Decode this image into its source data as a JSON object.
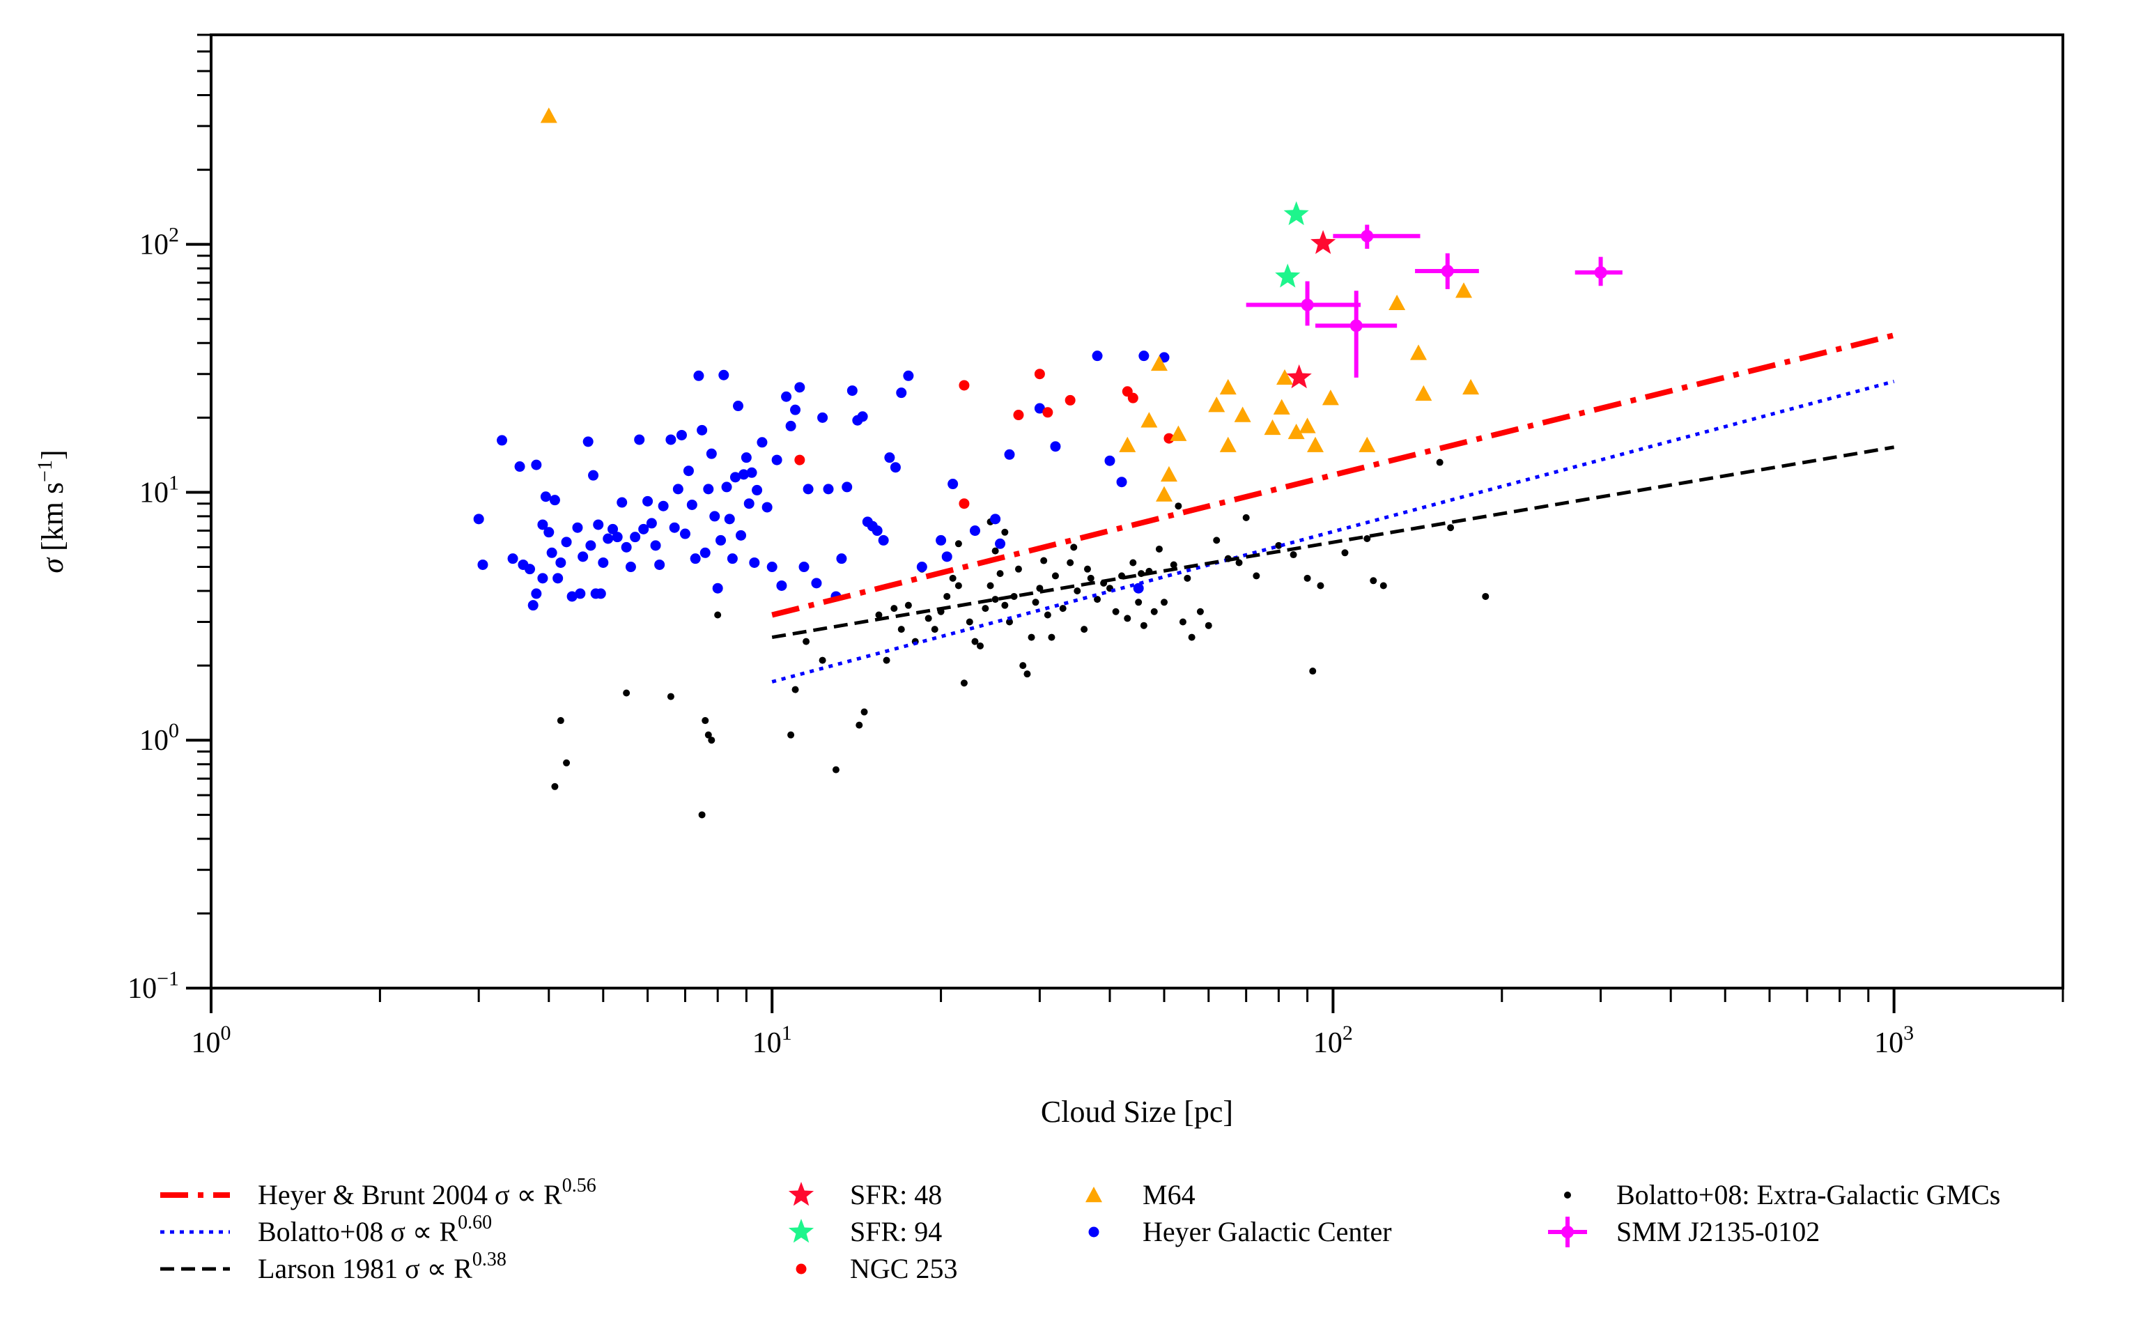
{
  "chart_data": {
    "type": "scatter",
    "xlabel": "Cloud Size [pc]",
    "ylabel_symbol": "σ",
    "ylabel_units": "[km s",
    "ylabel_exp": "−1",
    "ylabel_close": "]",
    "x_scale": "log",
    "y_scale": "log",
    "xlim": [
      1,
      2000
    ],
    "ylim": [
      0.1,
      700
    ],
    "grid": false,
    "legend_placement": "below-plot",
    "x_ticks": [
      {
        "value": 1,
        "base": "10",
        "exp": "0"
      },
      {
        "value": 10,
        "base": "10",
        "exp": "1"
      },
      {
        "value": 100,
        "base": "10",
        "exp": "2"
      },
      {
        "value": 1000,
        "base": "10",
        "exp": "3"
      }
    ],
    "y_ticks": [
      {
        "value": 0.1,
        "base": "10",
        "exp": "−1"
      },
      {
        "value": 1,
        "base": "10",
        "exp": "0"
      },
      {
        "value": 10,
        "base": "10",
        "exp": "1"
      },
      {
        "value": 100,
        "base": "10",
        "exp": "2"
      }
    ],
    "lines": [
      {
        "key": "heyer",
        "label_text": "Heyer & Brunt 2004 σ ∝ R",
        "label_exp": "0.56",
        "color": "#ff0000",
        "style": "dashdot",
        "exponent": 0.56,
        "x": [
          10,
          1000
        ],
        "y": [
          3.2,
          43
        ]
      },
      {
        "key": "bolatto",
        "label_text": "Bolatto+08 σ ∝ R",
        "label_exp": "0.60",
        "color": "#0000ff",
        "style": "dotted",
        "exponent": 0.6,
        "x": [
          10,
          1000
        ],
        "y": [
          1.72,
          28
        ]
      },
      {
        "key": "larson",
        "label_text": "Larson 1981 σ ∝ R",
        "label_exp": "0.38",
        "color": "#000000",
        "style": "dashed",
        "exponent": 0.38,
        "x": [
          10,
          1000
        ],
        "y": [
          2.6,
          15.2
        ]
      }
    ],
    "series": [
      {
        "key": "sfr48",
        "name": "SFR: 48",
        "marker": "star",
        "color": "#ff0a30",
        "points": [
          [
            96,
            101
          ],
          [
            87,
            29
          ]
        ]
      },
      {
        "key": "sfr94",
        "name": "SFR: 94",
        "marker": "star",
        "color": "#1ef58c",
        "points": [
          [
            86,
            132
          ],
          [
            83,
            74
          ]
        ]
      },
      {
        "key": "ngc253",
        "name": "NGC 253",
        "marker": "dot",
        "color": "#ff0000",
        "points": [
          [
            11.2,
            13.5
          ],
          [
            22,
            27
          ],
          [
            30,
            30
          ],
          [
            27.5,
            20.5
          ],
          [
            31,
            21
          ],
          [
            34,
            23.5
          ],
          [
            22,
            9
          ],
          [
            43,
            25.5
          ],
          [
            44,
            24
          ],
          [
            51,
            16.5
          ]
        ]
      },
      {
        "key": "m64",
        "name": "M64",
        "marker": "triangle",
        "color": "#ffa500",
        "points": [
          [
            4,
            330
          ],
          [
            49,
            33
          ],
          [
            50,
            9.8
          ],
          [
            51,
            11.8
          ],
          [
            47,
            19.5
          ],
          [
            43,
            15.5
          ],
          [
            53,
            17.2
          ],
          [
            62,
            22.5
          ],
          [
            65,
            26.5
          ],
          [
            69,
            20.5
          ],
          [
            65,
            15.5
          ],
          [
            78,
            18.2
          ],
          [
            81,
            22
          ],
          [
            82,
            29
          ],
          [
            86,
            17.5
          ],
          [
            90,
            18.5
          ],
          [
            93,
            15.5
          ],
          [
            99,
            24
          ],
          [
            115,
            15.5
          ],
          [
            130,
            58
          ],
          [
            142,
            36.5
          ],
          [
            145,
            25
          ],
          [
            171,
            65
          ],
          [
            176,
            26.5
          ]
        ]
      },
      {
        "key": "heyer_gc",
        "name": "Heyer Galactic Center",
        "marker": "dot",
        "color": "#0000ff",
        "points": [
          [
            3,
            7.8
          ],
          [
            3.05,
            5.1
          ],
          [
            3.3,
            16.2
          ],
          [
            3.45,
            5.4
          ],
          [
            3.55,
            12.7
          ],
          [
            3.6,
            5.1
          ],
          [
            3.7,
            4.9
          ],
          [
            3.75,
            3.5
          ],
          [
            3.8,
            12.9
          ],
          [
            3.8,
            3.9
          ],
          [
            3.9,
            7.4
          ],
          [
            3.9,
            4.5
          ],
          [
            3.95,
            9.6
          ],
          [
            4.0,
            6.9
          ],
          [
            4.05,
            5.7
          ],
          [
            4.1,
            9.3
          ],
          [
            4.15,
            4.5
          ],
          [
            4.2,
            5.2
          ],
          [
            4.3,
            6.3
          ],
          [
            4.4,
            3.8
          ],
          [
            4.5,
            7.2
          ],
          [
            4.55,
            3.9
          ],
          [
            4.6,
            5.5
          ],
          [
            4.7,
            16
          ],
          [
            4.75,
            6.1
          ],
          [
            4.8,
            11.7
          ],
          [
            4.85,
            3.9
          ],
          [
            4.9,
            7.4
          ],
          [
            4.95,
            3.9
          ],
          [
            5.0,
            5.2
          ],
          [
            5.1,
            6.5
          ],
          [
            5.2,
            7.1
          ],
          [
            5.3,
            6.6
          ],
          [
            5.4,
            9.1
          ],
          [
            5.5,
            6.0
          ],
          [
            5.6,
            5.0
          ],
          [
            5.7,
            6.6
          ],
          [
            5.8,
            16.3
          ],
          [
            5.9,
            7.1
          ],
          [
            6.0,
            9.2
          ],
          [
            6.1,
            7.5
          ],
          [
            6.2,
            6.1
          ],
          [
            6.3,
            5.1
          ],
          [
            6.4,
            8.8
          ],
          [
            6.6,
            16.3
          ],
          [
            6.7,
            7.2
          ],
          [
            6.8,
            10.3
          ],
          [
            6.9,
            17.0
          ],
          [
            7.0,
            6.8
          ],
          [
            7.1,
            12.2
          ],
          [
            7.2,
            8.9
          ],
          [
            7.3,
            5.4
          ],
          [
            7.4,
            29.5
          ],
          [
            7.5,
            17.8
          ],
          [
            7.6,
            5.7
          ],
          [
            7.7,
            10.3
          ],
          [
            7.8,
            14.3
          ],
          [
            7.9,
            8.0
          ],
          [
            8.0,
            4.1
          ],
          [
            8.1,
            6.4
          ],
          [
            8.2,
            29.7
          ],
          [
            8.3,
            10.5
          ],
          [
            8.4,
            7.8
          ],
          [
            8.5,
            5.4
          ],
          [
            8.6,
            11.5
          ],
          [
            8.7,
            22.3
          ],
          [
            8.8,
            6.7
          ],
          [
            8.9,
            11.8
          ],
          [
            9.0,
            13.8
          ],
          [
            9.1,
            9.0
          ],
          [
            9.2,
            12.0
          ],
          [
            9.3,
            5.2
          ],
          [
            9.4,
            10.2
          ],
          [
            9.6,
            15.9
          ],
          [
            9.8,
            8.7
          ],
          [
            10.0,
            5.0
          ],
          [
            10.2,
            13.5
          ],
          [
            10.4,
            4.2
          ],
          [
            10.6,
            24.3
          ],
          [
            10.8,
            18.5
          ],
          [
            11.0,
            21.5
          ],
          [
            11.2,
            26.5
          ],
          [
            11.4,
            5.0
          ],
          [
            11.6,
            10.3
          ],
          [
            12.0,
            4.3
          ],
          [
            12.3,
            20.0
          ],
          [
            12.6,
            10.3
          ],
          [
            13.0,
            3.8
          ],
          [
            13.3,
            5.4
          ],
          [
            13.6,
            10.5
          ],
          [
            13.9,
            25.7
          ],
          [
            14.2,
            19.5
          ],
          [
            14.5,
            20.2
          ],
          [
            14.8,
            7.6
          ],
          [
            15.1,
            7.3
          ],
          [
            15.4,
            7.0
          ],
          [
            15.8,
            6.4
          ],
          [
            16.2,
            13.8
          ],
          [
            16.6,
            12.6
          ],
          [
            17.0,
            25.2
          ],
          [
            17.5,
            29.5
          ],
          [
            18.5,
            5.0
          ],
          [
            20.0,
            6.4
          ],
          [
            20.5,
            5.5
          ],
          [
            21.0,
            10.8
          ],
          [
            23.0,
            7.0
          ],
          [
            25.0,
            7.8
          ],
          [
            25.5,
            6.2
          ],
          [
            26.5,
            14.2
          ],
          [
            30.0,
            21.8
          ],
          [
            32.0,
            15.3
          ],
          [
            38.0,
            35.5
          ],
          [
            40.0,
            13.4
          ],
          [
            42.0,
            11.0
          ],
          [
            45.0,
            4.1
          ],
          [
            46.0,
            35.5
          ],
          [
            50.0,
            35.0
          ]
        ]
      },
      {
        "key": "bolatto_gmc",
        "name": "Bolatto+08: Extra-Galactic GMCs",
        "marker": "smalldot",
        "color": "#000000",
        "points": [
          [
            4.1,
            0.65
          ],
          [
            4.2,
            1.2
          ],
          [
            4.3,
            0.81
          ],
          [
            5.5,
            1.55
          ],
          [
            6.6,
            1.5
          ],
          [
            7.5,
            0.5
          ],
          [
            7.6,
            1.2
          ],
          [
            7.7,
            1.05
          ],
          [
            7.8,
            1.0
          ],
          [
            8.0,
            3.2
          ],
          [
            10.8,
            1.05
          ],
          [
            11.0,
            1.6
          ],
          [
            11.5,
            2.5
          ],
          [
            12.3,
            2.1
          ],
          [
            13.0,
            0.76
          ],
          [
            14.3,
            1.15
          ],
          [
            14.6,
            1.3
          ],
          [
            15.5,
            3.2
          ],
          [
            16.0,
            2.1
          ],
          [
            16.5,
            3.4
          ],
          [
            17.0,
            2.8
          ],
          [
            17.5,
            3.5
          ],
          [
            18.0,
            2.5
          ],
          [
            18.5,
            4.9
          ],
          [
            19.0,
            3.1
          ],
          [
            19.5,
            2.8
          ],
          [
            20.0,
            3.3
          ],
          [
            20.5,
            3.8
          ],
          [
            21.0,
            4.5
          ],
          [
            21.5,
            4.2
          ],
          [
            22.0,
            1.7
          ],
          [
            22.5,
            3.0
          ],
          [
            23.0,
            2.5
          ],
          [
            23.5,
            2.4
          ],
          [
            24.0,
            3.4
          ],
          [
            24.5,
            4.2
          ],
          [
            25.0,
            3.7
          ],
          [
            25.5,
            4.7
          ],
          [
            26.0,
            3.5
          ],
          [
            26.5,
            3.0
          ],
          [
            27.0,
            3.8
          ],
          [
            27.5,
            4.9
          ],
          [
            28.0,
            2.0
          ],
          [
            28.5,
            1.85
          ],
          [
            29.0,
            2.6
          ],
          [
            29.5,
            3.6
          ],
          [
            30.0,
            4.1
          ],
          [
            30.5,
            5.3
          ],
          [
            31.0,
            3.2
          ],
          [
            31.5,
            2.6
          ],
          [
            32.0,
            4.6
          ],
          [
            33.0,
            3.4
          ],
          [
            34.0,
            5.2
          ],
          [
            35.0,
            4.0
          ],
          [
            36.0,
            2.8
          ],
          [
            37.0,
            4.5
          ],
          [
            38.0,
            3.7
          ],
          [
            39.0,
            4.3
          ],
          [
            40.0,
            4.1
          ],
          [
            41.0,
            3.3
          ],
          [
            42.0,
            4.6
          ],
          [
            43.0,
            3.1
          ],
          [
            44.0,
            5.2
          ],
          [
            45.0,
            3.6
          ],
          [
            46.0,
            2.9
          ],
          [
            47.0,
            4.8
          ],
          [
            48.0,
            3.3
          ],
          [
            49.0,
            5.9
          ],
          [
            50.0,
            3.6
          ],
          [
            52.0,
            5.1
          ],
          [
            53.0,
            8.8
          ],
          [
            54.0,
            3.0
          ],
          [
            55.0,
            4.5
          ],
          [
            56.0,
            2.6
          ],
          [
            58.0,
            3.3
          ],
          [
            60.0,
            2.9
          ],
          [
            62.0,
            6.4
          ],
          [
            65.0,
            5.4
          ],
          [
            68.0,
            5.2
          ],
          [
            70.0,
            7.9
          ],
          [
            73.0,
            4.6
          ],
          [
            80.0,
            6.1
          ],
          [
            85.0,
            5.6
          ],
          [
            90.0,
            4.5
          ],
          [
            92.0,
            1.9
          ],
          [
            95.0,
            4.2
          ],
          [
            105.0,
            5.7
          ],
          [
            115.0,
            6.5
          ],
          [
            118.0,
            4.4
          ],
          [
            123.0,
            4.2
          ],
          [
            155.0,
            13.2
          ],
          [
            162.0,
            7.2
          ],
          [
            187.0,
            3.8
          ],
          [
            26.0,
            6.9
          ],
          [
            25.0,
            5.8
          ],
          [
            21.5,
            6.2
          ],
          [
            24.5,
            7.6
          ],
          [
            36.5,
            4.9
          ],
          [
            34.5,
            6.0
          ],
          [
            45.5,
            4.7
          ]
        ]
      },
      {
        "key": "smm",
        "name": "SMM J2135-0102",
        "marker": "errorbar",
        "color": "#ff00ff",
        "points": [
          {
            "x": 115,
            "y": 108,
            "xerr": [
              15,
              28
            ],
            "yerr": [
              12,
              12
            ]
          },
          {
            "x": 160,
            "y": 78,
            "xerr": [
              20,
              22
            ],
            "yerr": [
              12,
              14
            ]
          },
          {
            "x": 300,
            "y": 77,
            "xerr": [
              30,
              28
            ],
            "yerr": [
              9,
              12
            ]
          },
          {
            "x": 90,
            "y": 57,
            "xerr": [
              20,
              22
            ],
            "yerr": [
              10,
              14
            ]
          },
          {
            "x": 110,
            "y": 47,
            "xerr": [
              17,
              20
            ],
            "yerr": [
              18,
              18
            ]
          }
        ]
      }
    ],
    "legend_order": [
      [
        "heyer",
        "bolatto",
        "larson"
      ],
      [
        "sfr48",
        "sfr94",
        "ngc253"
      ],
      [
        "m64",
        "heyer_gc"
      ],
      [
        "bolatto_gmc",
        "smm"
      ]
    ]
  }
}
